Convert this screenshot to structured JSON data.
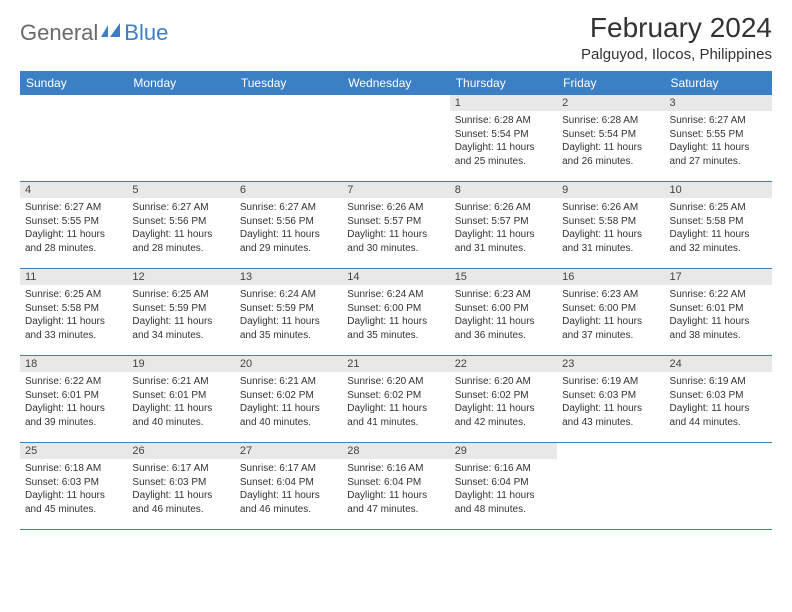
{
  "logo": {
    "general": "General",
    "blue": "Blue"
  },
  "title": "February 2024",
  "subtitle": "Palguyod, Ilocos, Philippines",
  "colors": {
    "header_bg": "#3b7fc4",
    "header_text": "#ffffff",
    "daynum_bg": "#e8e8e8",
    "row_border": "#3b7fc4",
    "body_text": "#333333",
    "logo_gray": "#6a6a6a",
    "logo_blue": "#3b7fc4"
  },
  "day_headers": [
    "Sunday",
    "Monday",
    "Tuesday",
    "Wednesday",
    "Thursday",
    "Friday",
    "Saturday"
  ],
  "weeks": [
    [
      {
        "empty": true
      },
      {
        "empty": true
      },
      {
        "empty": true
      },
      {
        "empty": true
      },
      {
        "num": "1",
        "sunrise": "Sunrise: 6:28 AM",
        "sunset": "Sunset: 5:54 PM",
        "dl1": "Daylight: 11 hours",
        "dl2": "and 25 minutes."
      },
      {
        "num": "2",
        "sunrise": "Sunrise: 6:28 AM",
        "sunset": "Sunset: 5:54 PM",
        "dl1": "Daylight: 11 hours",
        "dl2": "and 26 minutes."
      },
      {
        "num": "3",
        "sunrise": "Sunrise: 6:27 AM",
        "sunset": "Sunset: 5:55 PM",
        "dl1": "Daylight: 11 hours",
        "dl2": "and 27 minutes."
      }
    ],
    [
      {
        "num": "4",
        "sunrise": "Sunrise: 6:27 AM",
        "sunset": "Sunset: 5:55 PM",
        "dl1": "Daylight: 11 hours",
        "dl2": "and 28 minutes."
      },
      {
        "num": "5",
        "sunrise": "Sunrise: 6:27 AM",
        "sunset": "Sunset: 5:56 PM",
        "dl1": "Daylight: 11 hours",
        "dl2": "and 28 minutes."
      },
      {
        "num": "6",
        "sunrise": "Sunrise: 6:27 AM",
        "sunset": "Sunset: 5:56 PM",
        "dl1": "Daylight: 11 hours",
        "dl2": "and 29 minutes."
      },
      {
        "num": "7",
        "sunrise": "Sunrise: 6:26 AM",
        "sunset": "Sunset: 5:57 PM",
        "dl1": "Daylight: 11 hours",
        "dl2": "and 30 minutes."
      },
      {
        "num": "8",
        "sunrise": "Sunrise: 6:26 AM",
        "sunset": "Sunset: 5:57 PM",
        "dl1": "Daylight: 11 hours",
        "dl2": "and 31 minutes."
      },
      {
        "num": "9",
        "sunrise": "Sunrise: 6:26 AM",
        "sunset": "Sunset: 5:58 PM",
        "dl1": "Daylight: 11 hours",
        "dl2": "and 31 minutes."
      },
      {
        "num": "10",
        "sunrise": "Sunrise: 6:25 AM",
        "sunset": "Sunset: 5:58 PM",
        "dl1": "Daylight: 11 hours",
        "dl2": "and 32 minutes."
      }
    ],
    [
      {
        "num": "11",
        "sunrise": "Sunrise: 6:25 AM",
        "sunset": "Sunset: 5:58 PM",
        "dl1": "Daylight: 11 hours",
        "dl2": "and 33 minutes."
      },
      {
        "num": "12",
        "sunrise": "Sunrise: 6:25 AM",
        "sunset": "Sunset: 5:59 PM",
        "dl1": "Daylight: 11 hours",
        "dl2": "and 34 minutes."
      },
      {
        "num": "13",
        "sunrise": "Sunrise: 6:24 AM",
        "sunset": "Sunset: 5:59 PM",
        "dl1": "Daylight: 11 hours",
        "dl2": "and 35 minutes."
      },
      {
        "num": "14",
        "sunrise": "Sunrise: 6:24 AM",
        "sunset": "Sunset: 6:00 PM",
        "dl1": "Daylight: 11 hours",
        "dl2": "and 35 minutes."
      },
      {
        "num": "15",
        "sunrise": "Sunrise: 6:23 AM",
        "sunset": "Sunset: 6:00 PM",
        "dl1": "Daylight: 11 hours",
        "dl2": "and 36 minutes."
      },
      {
        "num": "16",
        "sunrise": "Sunrise: 6:23 AM",
        "sunset": "Sunset: 6:00 PM",
        "dl1": "Daylight: 11 hours",
        "dl2": "and 37 minutes."
      },
      {
        "num": "17",
        "sunrise": "Sunrise: 6:22 AM",
        "sunset": "Sunset: 6:01 PM",
        "dl1": "Daylight: 11 hours",
        "dl2": "and 38 minutes."
      }
    ],
    [
      {
        "num": "18",
        "sunrise": "Sunrise: 6:22 AM",
        "sunset": "Sunset: 6:01 PM",
        "dl1": "Daylight: 11 hours",
        "dl2": "and 39 minutes."
      },
      {
        "num": "19",
        "sunrise": "Sunrise: 6:21 AM",
        "sunset": "Sunset: 6:01 PM",
        "dl1": "Daylight: 11 hours",
        "dl2": "and 40 minutes."
      },
      {
        "num": "20",
        "sunrise": "Sunrise: 6:21 AM",
        "sunset": "Sunset: 6:02 PM",
        "dl1": "Daylight: 11 hours",
        "dl2": "and 40 minutes."
      },
      {
        "num": "21",
        "sunrise": "Sunrise: 6:20 AM",
        "sunset": "Sunset: 6:02 PM",
        "dl1": "Daylight: 11 hours",
        "dl2": "and 41 minutes."
      },
      {
        "num": "22",
        "sunrise": "Sunrise: 6:20 AM",
        "sunset": "Sunset: 6:02 PM",
        "dl1": "Daylight: 11 hours",
        "dl2": "and 42 minutes."
      },
      {
        "num": "23",
        "sunrise": "Sunrise: 6:19 AM",
        "sunset": "Sunset: 6:03 PM",
        "dl1": "Daylight: 11 hours",
        "dl2": "and 43 minutes."
      },
      {
        "num": "24",
        "sunrise": "Sunrise: 6:19 AM",
        "sunset": "Sunset: 6:03 PM",
        "dl1": "Daylight: 11 hours",
        "dl2": "and 44 minutes."
      }
    ],
    [
      {
        "num": "25",
        "sunrise": "Sunrise: 6:18 AM",
        "sunset": "Sunset: 6:03 PM",
        "dl1": "Daylight: 11 hours",
        "dl2": "and 45 minutes."
      },
      {
        "num": "26",
        "sunrise": "Sunrise: 6:17 AM",
        "sunset": "Sunset: 6:03 PM",
        "dl1": "Daylight: 11 hours",
        "dl2": "and 46 minutes."
      },
      {
        "num": "27",
        "sunrise": "Sunrise: 6:17 AM",
        "sunset": "Sunset: 6:04 PM",
        "dl1": "Daylight: 11 hours",
        "dl2": "and 46 minutes."
      },
      {
        "num": "28",
        "sunrise": "Sunrise: 6:16 AM",
        "sunset": "Sunset: 6:04 PM",
        "dl1": "Daylight: 11 hours",
        "dl2": "and 47 minutes."
      },
      {
        "num": "29",
        "sunrise": "Sunrise: 6:16 AM",
        "sunset": "Sunset: 6:04 PM",
        "dl1": "Daylight: 11 hours",
        "dl2": "and 48 minutes."
      },
      {
        "empty": true
      },
      {
        "empty": true
      }
    ]
  ]
}
